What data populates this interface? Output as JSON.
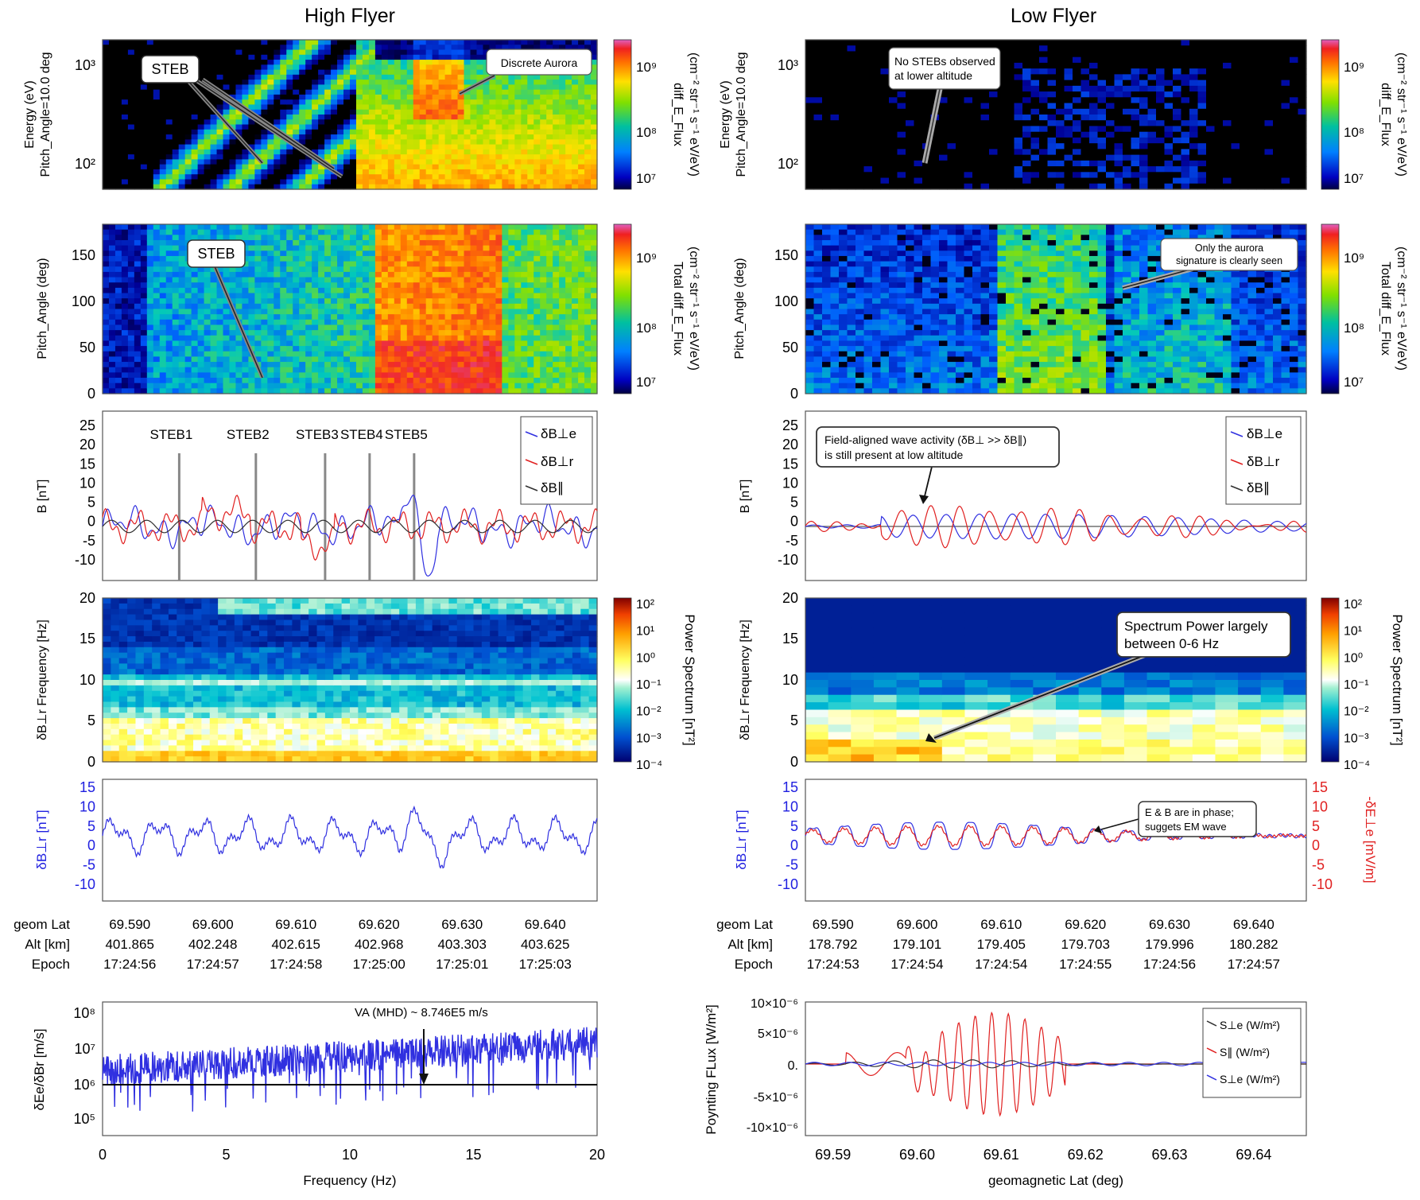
{
  "columns": [
    {
      "title": "High Flyer"
    },
    {
      "title": "Low Flyer"
    }
  ],
  "chart_data": [
    {
      "panel": "hf-energy",
      "type": "heatmap",
      "ylabel_lines": [
        "Energy (eV)",
        "Pitch_Angle=10.0 deg"
      ],
      "yticks": [
        "10²",
        "10³"
      ],
      "colorbar": {
        "label_lines": [
          "diff_E_Flux",
          "(cm⁻² str⁻¹ s⁻¹ eV/eV)"
        ],
        "ticks": [
          "10⁷",
          "10⁸",
          "10⁹"
        ]
      },
      "annotations": [
        "STEB",
        "Discrete Aurora"
      ]
    },
    {
      "panel": "hf-pitch",
      "type": "heatmap",
      "ylabel": "Pitch_Angle (deg)",
      "yticks": [
        "0",
        "50",
        "100",
        "150"
      ],
      "colorbar": {
        "label_lines": [
          "Total diff_E_Flux",
          "(cm⁻² str⁻¹ s⁻¹ eV/eV)"
        ],
        "ticks": [
          "10⁷",
          "10⁸",
          "10⁹"
        ]
      },
      "annotations": [
        "STEB"
      ]
    },
    {
      "panel": "hf-bfield",
      "type": "line",
      "ylabel": "B [nT]",
      "ylim": [
        -12,
        25
      ],
      "yticks": [
        "-10",
        "-5",
        "0",
        "5",
        "10",
        "15",
        "20",
        "25"
      ],
      "legend": [
        "δB⊥e",
        "δB⊥r",
        "δB∥"
      ],
      "markers": [
        "STEB1",
        "STEB2",
        "STEB3",
        "STEB4",
        "STEB5"
      ],
      "colors": [
        "#3030e0",
        "#e02020",
        "#303030"
      ]
    },
    {
      "panel": "hf-spectrum",
      "type": "heatmap",
      "ylabel": "δB⊥r Frequency [Hz]",
      "yticks": [
        "0",
        "5",
        "10",
        "15",
        "20"
      ],
      "colorbar": {
        "label_lines": [
          "Power Spectrum [nT²]"
        ],
        "ticks": [
          "10⁻⁴",
          "10⁻³",
          "10⁻²",
          "10⁻¹",
          "10⁰",
          "10¹",
          "10²"
        ]
      }
    },
    {
      "panel": "hf-dbr",
      "type": "line",
      "ylabel": "δB⊥r [nT]",
      "ylim": [
        -12,
        15
      ],
      "yticks": [
        "-10",
        "-5",
        "0",
        "5",
        "10",
        "15"
      ]
    },
    {
      "panel": "hf-axis",
      "type": "table",
      "rows": [
        {
          "label": "geom Lat",
          "values": [
            "69.590",
            "69.600",
            "69.610",
            "69.620",
            "69.630",
            "69.640"
          ]
        },
        {
          "label": "Alt [km]",
          "values": [
            "401.865",
            "402.248",
            "402.615",
            "402.968",
            "403.303",
            "403.625"
          ]
        },
        {
          "label": "Epoch",
          "values": [
            "17:24:56",
            "17:24:57",
            "17:24:58",
            "17:25:00",
            "17:25:01",
            "17:25:03"
          ]
        }
      ]
    },
    {
      "panel": "hf-ratio",
      "type": "line",
      "xlabel": "Frequency (Hz)",
      "ylabel": "δEe/δBr [m/s]",
      "x": [
        0,
        5,
        10,
        15,
        20
      ],
      "xticks": [
        "0",
        "5",
        "10",
        "15",
        "20"
      ],
      "yticks": [
        "10⁵",
        "10⁶",
        "10⁷",
        "10⁸"
      ],
      "annotation": "VA (MHD) ~ 8.746E5 m/s"
    },
    {
      "panel": "lf-energy",
      "type": "heatmap",
      "ylabel_lines": [
        "Energy (eV)",
        "Pitch_Angle=10.0 deg"
      ],
      "yticks": [
        "10²",
        "10³"
      ],
      "colorbar": {
        "label_lines": [
          "diff_E_Flux",
          "(cm⁻² str⁻¹ s⁻¹ eV/eV)"
        ],
        "ticks": [
          "10⁷",
          "10⁸",
          "10⁹"
        ]
      },
      "annotations": [
        "No STEBs observed",
        "at lower altitude"
      ]
    },
    {
      "panel": "lf-pitch",
      "type": "heatmap",
      "ylabel": "Pitch_Angle (deg)",
      "yticks": [
        "0",
        "50",
        "100",
        "150"
      ],
      "colorbar": {
        "label_lines": [
          "Total diff_E_Flux",
          "(cm⁻² str⁻¹ s⁻¹ eV/eV)"
        ],
        "ticks": [
          "10⁷",
          "10⁸",
          "10⁹"
        ]
      },
      "annotations": [
        "Only the aurora",
        "signature is clearly seen"
      ]
    },
    {
      "panel": "lf-bfield",
      "type": "line",
      "ylabel": "B [nT]",
      "ylim": [
        -12,
        25
      ],
      "yticks": [
        "-10",
        "-5",
        "0",
        "5",
        "10",
        "15",
        "20",
        "25"
      ],
      "legend": [
        "δB⊥e",
        "δB⊥r",
        "δB∥"
      ],
      "annotations": [
        "Field-aligned wave activity (δB⊥ >> δB∥)",
        "is still  present at low altitude"
      ]
    },
    {
      "panel": "lf-spectrum",
      "type": "heatmap",
      "ylabel": "δB⊥r Frequency [Hz]",
      "yticks": [
        "0",
        "5",
        "10",
        "15",
        "20"
      ],
      "colorbar": {
        "label_lines": [
          "Power Spectrum [nT²]"
        ],
        "ticks": [
          "10⁻⁴",
          "10⁻³",
          "10⁻²",
          "10⁻¹",
          "10⁰",
          "10¹",
          "10²"
        ]
      },
      "annotations": [
        "Spectrum Power largely",
        "between 0-6 Hz"
      ]
    },
    {
      "panel": "lf-dbr",
      "type": "line",
      "ylabel": "δB⊥r [nT]",
      "ylabel_right": "-δE⊥e [mV/m]",
      "yticks": [
        "-10",
        "-5",
        "0",
        "5",
        "10",
        "15"
      ],
      "annotations": [
        "E & B are in phase;",
        "suggets EM wave"
      ]
    },
    {
      "panel": "lf-axis",
      "type": "table",
      "rows": [
        {
          "label": "geom Lat",
          "values": [
            "69.590",
            "69.600",
            "69.610",
            "69.620",
            "69.630",
            "69.640"
          ]
        },
        {
          "label": "Alt [km]",
          "values": [
            "178.792",
            "179.101",
            "179.405",
            "179.703",
            "179.996",
            "180.282"
          ]
        },
        {
          "label": "Epoch",
          "values": [
            "17:24:53",
            "17:24:54",
            "17:24:54",
            "17:24:55",
            "17:24:56",
            "17:24:57"
          ]
        }
      ]
    },
    {
      "panel": "lf-poynting",
      "type": "line",
      "xlabel": "geomagnetic Lat (deg)",
      "ylabel": "Poynting FLux [W/m²]",
      "xticks": [
        "69.59",
        "69.60",
        "69.61",
        "69.62",
        "69.63",
        "69.64"
      ],
      "yticks": [
        "-10×10⁻⁶",
        "-5×10⁻⁶",
        "0.",
        "5×10⁻⁶",
        "10×10⁻⁶"
      ],
      "legend": [
        "S⊥e (W/m²)",
        "S∥ (W/m²)",
        "S⊥e (W/m²)"
      ],
      "colors": [
        "#303030",
        "#e02020",
        "#3030e0"
      ]
    }
  ]
}
